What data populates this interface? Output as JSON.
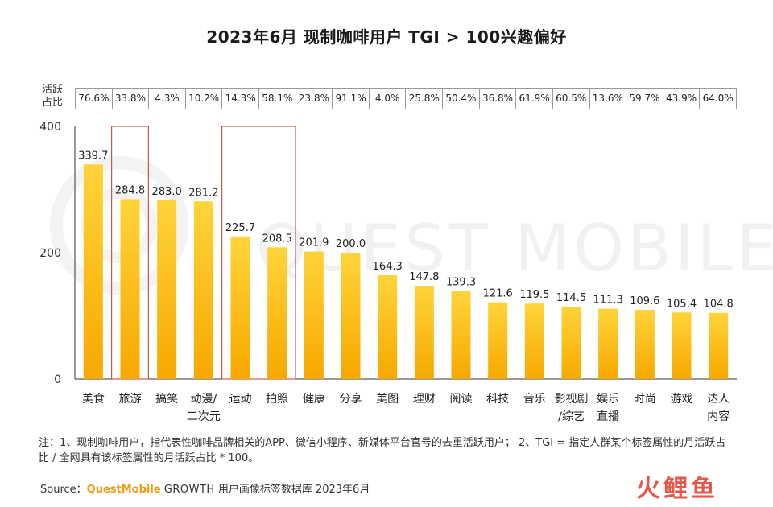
{
  "chart_data": {
    "type": "bar",
    "title": "2023年6月 现制咖啡用户 TGI > 100兴趣偏好",
    "categories": [
      "美食",
      "旅游",
      "搞笑",
      "动漫/二次元",
      "运动",
      "拍照",
      "健康",
      "分享",
      "美图",
      "理财",
      "阅读",
      "科技",
      "音乐",
      "影视剧/综艺",
      "娱乐直播",
      "时尚",
      "游戏",
      "达人内容"
    ],
    "category_lines": [
      [
        "美食"
      ],
      [
        "旅游"
      ],
      [
        "搞笑"
      ],
      [
        "动漫/",
        "二次元"
      ],
      [
        "运动"
      ],
      [
        "拍照"
      ],
      [
        "健康"
      ],
      [
        "分享"
      ],
      [
        "美图"
      ],
      [
        "理财"
      ],
      [
        "阅读"
      ],
      [
        "科技"
      ],
      [
        "音乐"
      ],
      [
        "影视剧",
        "/综艺"
      ],
      [
        "娱乐",
        "直播"
      ],
      [
        "时尚"
      ],
      [
        "游戏"
      ],
      [
        "达人",
        "内容"
      ]
    ],
    "values": [
      339.7,
      284.8,
      283.0,
      281.2,
      225.7,
      208.5,
      201.9,
      200.0,
      164.3,
      147.8,
      139.3,
      121.6,
      119.5,
      114.5,
      111.3,
      109.6,
      105.4,
      104.8
    ],
    "value_labels": [
      "339.7",
      "284.8",
      "283.0",
      "281.2",
      "225.7",
      "208.5",
      "201.9",
      "200.0",
      "164.3",
      "147.8",
      "139.3",
      "121.6",
      "119.5",
      "114.5",
      "111.3",
      "109.6",
      "105.4",
      "104.8"
    ],
    "active_share_label": "活跃占比",
    "active_share": [
      "76.6%",
      "33.8%",
      "4.3%",
      "10.2%",
      "14.3%",
      "58.1%",
      "23.8%",
      "91.1%",
      "4.0%",
      "25.8%",
      "50.4%",
      "36.8%",
      "61.9%",
      "60.5%",
      "13.6%",
      "59.7%",
      "43.9%",
      "64.0%"
    ],
    "ylim": [
      0,
      400
    ],
    "yticks": [
      0,
      200,
      400
    ],
    "highlighted_categories": [
      [
        "旅游"
      ],
      [
        "运动",
        "拍照"
      ]
    ],
    "bar_color_top": "#ffd43a",
    "bar_color_bottom": "#f7a800",
    "highlight_color": "#c0392b",
    "grid": false
  },
  "note": "注：1、现制咖啡用户，指代表性咖啡品牌相关的APP、微信小程序、新媒体平台官号的去重活跃用户； 2、TGI = 指定人群某个标签属性的月活跃占比 / 全网具有该标签属性的月活跃占比 * 100。",
  "source": {
    "prefix": "Source：",
    "brand": "QuestMobile",
    "growth": "GROWTH",
    "rest": "用户画像标签数据库 2023年6月"
  },
  "watermark": "QUEST MOBILE",
  "logo": "火鲤鱼"
}
